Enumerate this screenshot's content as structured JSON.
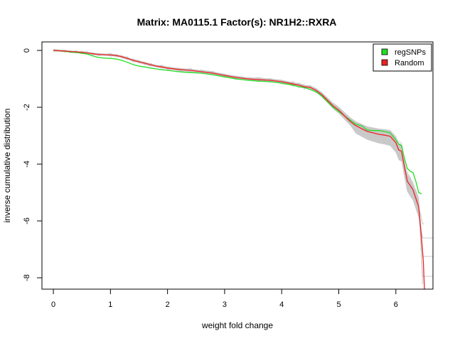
{
  "chart_data": {
    "type": "line",
    "title": "Matrix: MA0115.1 Factor(s): NR1H2::RXRA",
    "xlabel": "weight fold change",
    "ylabel": "inverse cumulative distribution",
    "xlim": [
      -0.2,
      6.65
    ],
    "ylim": [
      -8.4,
      0.3
    ],
    "x_ticks": [
      0,
      1,
      2,
      3,
      4,
      5,
      6
    ],
    "y_ticks": [
      0,
      -2,
      -4,
      -6,
      -8
    ],
    "legend": {
      "position": "top-right",
      "entries": [
        "regSNPs",
        "Random"
      ]
    },
    "colors": {
      "regSNPs": "#22dd22",
      "Random": "#ee2222",
      "background_runs": "#c8c8c8",
      "band": "#c0c0c0"
    },
    "series": [
      {
        "name": "regSNPs",
        "x": [
          0,
          0.2,
          0.3,
          0.4,
          0.5,
          0.6,
          0.7,
          0.8,
          0.9,
          1.0,
          1.1,
          1.2,
          1.3,
          1.4,
          1.5,
          1.6,
          1.7,
          1.8,
          1.9,
          2.0,
          2.2,
          2.4,
          2.6,
          2.8,
          3.0,
          3.2,
          3.4,
          3.6,
          3.8,
          4.0,
          4.2,
          4.3,
          4.4,
          4.5,
          4.6,
          4.7,
          4.8,
          4.9,
          5.0,
          5.1,
          5.2,
          5.3,
          5.4,
          5.5,
          5.6,
          5.7,
          5.8,
          5.9,
          6.0,
          6.05,
          6.1,
          6.15,
          6.2,
          6.25,
          6.3,
          6.35,
          6.4,
          6.45
        ],
        "y": [
          0,
          -0.03,
          -0.06,
          -0.07,
          -0.1,
          -0.13,
          -0.2,
          -0.25,
          -0.27,
          -0.28,
          -0.3,
          -0.35,
          -0.42,
          -0.5,
          -0.55,
          -0.58,
          -0.62,
          -0.65,
          -0.68,
          -0.7,
          -0.75,
          -0.78,
          -0.8,
          -0.86,
          -0.93,
          -1.0,
          -1.05,
          -1.08,
          -1.1,
          -1.15,
          -1.22,
          -1.28,
          -1.3,
          -1.38,
          -1.45,
          -1.6,
          -1.8,
          -2.0,
          -2.15,
          -2.3,
          -2.45,
          -2.6,
          -2.65,
          -2.8,
          -2.82,
          -2.82,
          -2.85,
          -2.9,
          -3.15,
          -3.3,
          -3.35,
          -3.8,
          -4.15,
          -4.25,
          -4.3,
          -4.6,
          -5.0,
          -5.05
        ]
      },
      {
        "name": "Random",
        "x": [
          0,
          0.2,
          0.3,
          0.4,
          0.5,
          0.6,
          0.7,
          0.8,
          0.9,
          1.0,
          1.1,
          1.2,
          1.3,
          1.4,
          1.5,
          1.6,
          1.7,
          1.8,
          1.9,
          2.0,
          2.2,
          2.4,
          2.6,
          2.8,
          3.0,
          3.2,
          3.4,
          3.6,
          3.8,
          4.0,
          4.2,
          4.3,
          4.4,
          4.5,
          4.6,
          4.7,
          4.8,
          4.9,
          5.0,
          5.1,
          5.2,
          5.3,
          5.4,
          5.5,
          5.6,
          5.7,
          5.8,
          5.9,
          6.0,
          6.05,
          6.1,
          6.15,
          6.2,
          6.25,
          6.3,
          6.35,
          6.4,
          6.45,
          6.48,
          6.5
        ],
        "y": [
          0,
          -0.02,
          -0.04,
          -0.05,
          -0.07,
          -0.09,
          -0.12,
          -0.14,
          -0.15,
          -0.16,
          -0.18,
          -0.22,
          -0.28,
          -0.35,
          -0.4,
          -0.45,
          -0.5,
          -0.55,
          -0.58,
          -0.62,
          -0.67,
          -0.7,
          -0.75,
          -0.8,
          -0.88,
          -0.95,
          -1.0,
          -1.03,
          -1.05,
          -1.1,
          -1.18,
          -1.22,
          -1.28,
          -1.3,
          -1.4,
          -1.55,
          -1.75,
          -1.95,
          -2.1,
          -2.3,
          -2.5,
          -2.65,
          -2.75,
          -2.85,
          -2.9,
          -2.95,
          -2.98,
          -3.02,
          -3.25,
          -3.5,
          -3.55,
          -4.1,
          -4.6,
          -4.75,
          -4.9,
          -5.2,
          -5.5,
          -6.6,
          -7.4,
          -8.4
        ]
      }
    ]
  }
}
